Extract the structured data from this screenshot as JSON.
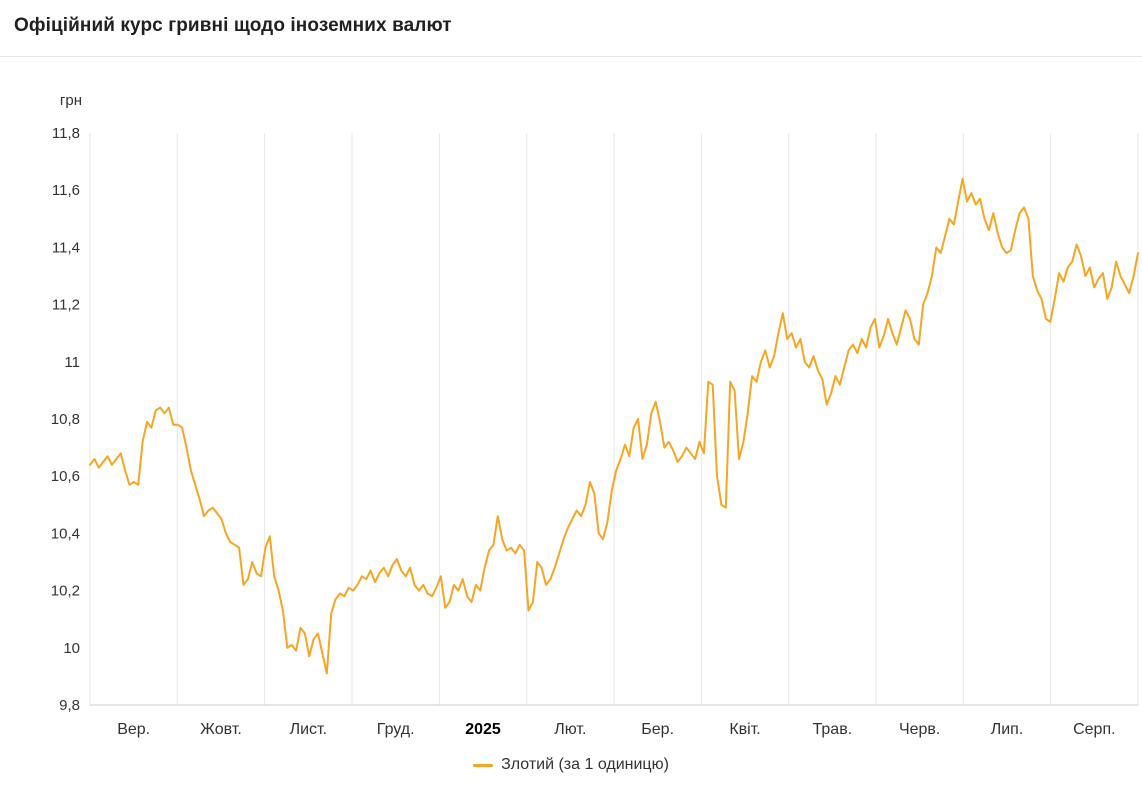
{
  "header": {
    "title": "Офіційний курс гривні щодо іноземних валют"
  },
  "chart_data": {
    "type": "line",
    "title": "Офіційний курс гривні щодо іноземних валют",
    "xlabel": "",
    "ylabel": "грн",
    "ylim": [
      9.8,
      11.8
    ],
    "grid": "vertical-only",
    "legend_position": "bottom-center",
    "line_color": "#F5A623",
    "grid_color": "#e6e6e6",
    "axis_color": "#cccccc",
    "tick_color": "#333333",
    "y_tick_values": [
      9.8,
      10,
      10.2,
      10.4,
      10.6,
      10.8,
      11,
      11.2,
      11.4,
      11.6,
      11.8
    ],
    "y_tick_labels": [
      "9,8",
      "10",
      "10,2",
      "10,4",
      "10,6",
      "10,8",
      "11",
      "11,2",
      "11,4",
      "11,6",
      "11,8"
    ],
    "x_tick_labels": [
      "Вер.",
      "Жовт.",
      "Лист.",
      "Груд.",
      "2025",
      "Лют.",
      "Бер.",
      "Квіт.",
      "Трав.",
      "Черв.",
      "Лип.",
      "Серп."
    ],
    "bold_x_label": "2025",
    "legend": "Злотий (за 1 одиницю)",
    "series": [
      {
        "name": "Злотий (за 1 одиницю)",
        "values": [
          10.64,
          10.66,
          10.63,
          10.65,
          10.67,
          10.64,
          10.66,
          10.68,
          10.62,
          10.57,
          10.58,
          10.57,
          10.72,
          10.79,
          10.77,
          10.83,
          10.84,
          10.82,
          10.84,
          10.78,
          10.78,
          10.77,
          10.7,
          10.62,
          10.57,
          10.52,
          10.46,
          10.48,
          10.49,
          10.47,
          10.45,
          10.4,
          10.37,
          10.36,
          10.35,
          10.22,
          10.24,
          10.3,
          10.26,
          10.25,
          10.35,
          10.39,
          10.25,
          10.2,
          10.13,
          10.0,
          10.01,
          9.99,
          10.07,
          10.05,
          9.97,
          10.03,
          10.05,
          9.98,
          9.91,
          10.12,
          10.17,
          10.19,
          10.18,
          10.21,
          10.2,
          10.22,
          10.25,
          10.24,
          10.27,
          10.23,
          10.26,
          10.28,
          10.25,
          10.29,
          10.31,
          10.27,
          10.25,
          10.28,
          10.22,
          10.2,
          10.22,
          10.19,
          10.18,
          10.21,
          10.25,
          10.14,
          10.16,
          10.22,
          10.2,
          10.24,
          10.18,
          10.16,
          10.22,
          10.2,
          10.28,
          10.34,
          10.36,
          10.46,
          10.38,
          10.34,
          10.35,
          10.33,
          10.36,
          10.34,
          10.13,
          10.16,
          10.3,
          10.28,
          10.22,
          10.24,
          10.28,
          10.33,
          10.38,
          10.42,
          10.45,
          10.48,
          10.46,
          10.5,
          10.58,
          10.54,
          10.4,
          10.38,
          10.44,
          10.55,
          10.62,
          10.66,
          10.71,
          10.67,
          10.77,
          10.8,
          10.66,
          10.71,
          10.82,
          10.86,
          10.79,
          10.7,
          10.72,
          10.69,
          10.65,
          10.67,
          10.7,
          10.68,
          10.66,
          10.72,
          10.68,
          10.93,
          10.92,
          10.6,
          10.5,
          10.49,
          10.93,
          10.9,
          10.66,
          10.72,
          10.82,
          10.95,
          10.93,
          11.0,
          11.04,
          10.98,
          11.02,
          11.1,
          11.17,
          11.08,
          11.1,
          11.05,
          11.08,
          11.0,
          10.98,
          11.02,
          10.97,
          10.94,
          10.85,
          10.89,
          10.95,
          10.92,
          10.98,
          11.04,
          11.06,
          11.03,
          11.08,
          11.05,
          11.12,
          11.15,
          11.05,
          11.09,
          11.15,
          11.1,
          11.06,
          11.12,
          11.18,
          11.15,
          11.08,
          11.06,
          11.2,
          11.24,
          11.3,
          11.4,
          11.38,
          11.44,
          11.5,
          11.48,
          11.56,
          11.64,
          11.56,
          11.59,
          11.55,
          11.57,
          11.5,
          11.46,
          11.52,
          11.45,
          11.4,
          11.38,
          11.39,
          11.46,
          11.52,
          11.54,
          11.5,
          11.3,
          11.25,
          11.22,
          11.15,
          11.14,
          11.22,
          11.31,
          11.28,
          11.33,
          11.35,
          11.41,
          11.37,
          11.3,
          11.33,
          11.26,
          11.29,
          11.31,
          11.22,
          11.26,
          11.35,
          11.3,
          11.27,
          11.24,
          11.3,
          11.38
        ]
      }
    ]
  }
}
